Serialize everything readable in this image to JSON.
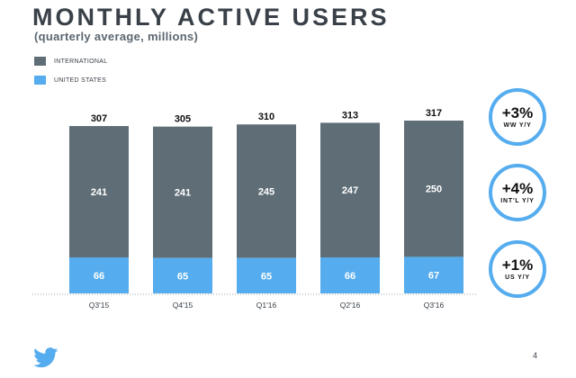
{
  "header": {
    "title": "MONTHLY ACTIVE USERS",
    "subtitle": "(quarterly average, millions)"
  },
  "colors": {
    "international": "#5f6e76",
    "united_states": "#55acee",
    "badge_border": "#55acee",
    "twitter_logo": "#55acee"
  },
  "chart_data": {
    "type": "bar",
    "stacked": true,
    "title": "MONTHLY ACTIVE USERS",
    "subtitle": "(quarterly average, millions)",
    "categories": [
      "Q3'15",
      "Q4'15",
      "Q1'16",
      "Q2'16",
      "Q3'16"
    ],
    "series": [
      {
        "name": "UNITED STATES",
        "values": [
          66,
          65,
          65,
          66,
          67
        ]
      },
      {
        "name": "INTERNATIONAL",
        "values": [
          241,
          241,
          245,
          247,
          250
        ]
      }
    ],
    "totals": [
      307,
      305,
      310,
      313,
      317
    ],
    "legend": [
      "INTERNATIONAL",
      "UNITED STATES"
    ],
    "legend_position": "top-left",
    "grid": false,
    "ylim": [
      0,
      317
    ]
  },
  "badges": [
    {
      "value": "+3%",
      "label": "WW Y/Y"
    },
    {
      "value": "+4%",
      "label": "INT'L Y/Y"
    },
    {
      "value": "+1%",
      "label": "US Y/Y"
    }
  ],
  "footer": {
    "logo_icon": "twitter-bird-icon",
    "page_number": "4"
  }
}
